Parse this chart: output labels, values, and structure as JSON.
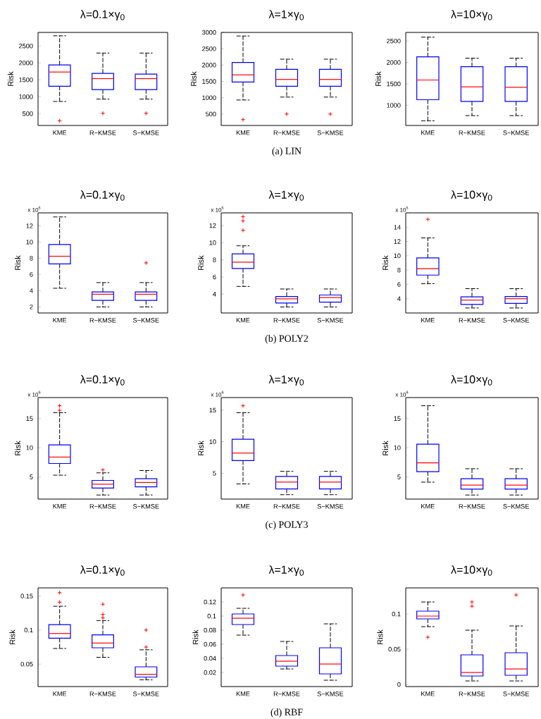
{
  "chart_data": [
    {
      "type": "box",
      "title": "λ=0.1×γ$_{0}$",
      "ylabel": "Risk",
      "categories": [
        "KME",
        "R−KMSE",
        "S−KMSE"
      ],
      "marker": "cross",
      "ylim": [
        150,
        2900
      ],
      "yticks": [
        500,
        1000,
        1500,
        2000,
        2500
      ],
      "series": [
        {
          "color": "#0000ff",
          "boxes": [
            {
              "low": 860,
              "q1": 1310,
              "median": 1730,
              "q3": 1940,
              "high": 2800,
              "outliers": [
                290
              ]
            },
            {
              "low": 930,
              "q1": 1210,
              "median": 1535,
              "q3": 1690,
              "high": 2290,
              "outliers": [
                510
              ]
            },
            {
              "low": 930,
              "q1": 1210,
              "median": 1535,
              "q3": 1670,
              "high": 2290,
              "outliers": [
                510
              ]
            }
          ]
        }
      ]
    },
    {
      "type": "box",
      "title": "λ=1×γ$_{0}$",
      "ylabel": "Risk",
      "categories": [
        "KME",
        "R−KMSE",
        "S−KMSE"
      ],
      "marker": "cross",
      "ylim": [
        150,
        3000
      ],
      "yticks": [
        500,
        1000,
        1500,
        2000,
        2500,
        3000
      ],
      "annotations": [
        "(a) LIN"
      ],
      "series": [
        {
          "color": "#0000ff",
          "boxes": [
            {
              "low": 930,
              "q1": 1480,
              "median": 1700,
              "q3": 2080,
              "high": 2890,
              "outliers": [
                330
              ]
            },
            {
              "low": 1020,
              "q1": 1350,
              "median": 1560,
              "q3": 1870,
              "high": 2180,
              "outliers": [
                500
              ]
            },
            {
              "low": 1020,
              "q1": 1350,
              "median": 1560,
              "q3": 1870,
              "high": 2180,
              "outliers": [
                500
              ]
            }
          ]
        }
      ]
    },
    {
      "type": "box",
      "title": "λ=10×γ$_{0}$",
      "ylabel": "Risk",
      "categories": [
        "KME",
        "R−KMSE",
        "S−KMSE"
      ],
      "marker": "cross",
      "ylim": [
        530,
        2700
      ],
      "yticks": [
        1000,
        1500,
        2000,
        2500
      ],
      "series": [
        {
          "color": "#0000ff",
          "boxes": [
            {
              "low": 640,
              "q1": 1130,
              "median": 1590,
              "q3": 2130,
              "high": 2590
            },
            {
              "low": 760,
              "q1": 1090,
              "median": 1430,
              "q3": 1900,
              "high": 2100
            },
            {
              "low": 760,
              "q1": 1090,
              "median": 1420,
              "q3": 1900,
              "high": 2100
            }
          ]
        }
      ]
    },
    {
      "type": "box",
      "title": "λ=0.1×γ$_{0}$",
      "ylabel": "Risk",
      "categories": [
        "KME",
        "R−KMSE",
        "S−KMSE"
      ],
      "marker": "cross",
      "ylim": [
        1.25,
        13.6
      ],
      "annotations": [
        "x 10$^{5}$"
      ],
      "yticks": [
        2,
        4,
        6,
        8,
        10,
        12
      ],
      "series": [
        {
          "color": "#0000ff",
          "boxes": [
            {
              "low": 4.3,
              "q1": 7.3,
              "median": 8.25,
              "q3": 9.7,
              "high": 13.1
            },
            {
              "low": 2.0,
              "q1": 2.8,
              "median": 3.56,
              "q3": 3.85,
              "high": 5.0
            },
            {
              "low": 2.0,
              "q1": 2.8,
              "median": 3.56,
              "q3": 3.85,
              "high": 5.0,
              "outliers": [
                7.43
              ]
            }
          ]
        }
      ]
    },
    {
      "type": "box",
      "title": "λ=1×γ$_{0}$",
      "ylabel": "Risk",
      "categories": [
        "KME",
        "R−KMSE",
        "S−KMSE"
      ],
      "marker": "cross",
      "ylim": [
        1.8,
        13.48
      ],
      "annotations": [
        "x 10$^{5}$",
        "(b) POLY2"
      ],
      "yticks": [
        4,
        6,
        8,
        10,
        12
      ],
      "series": [
        {
          "color": "#0000ff",
          "boxes": [
            {
              "low": 4.9,
              "q1": 7.0,
              "median": 7.73,
              "q3": 8.7,
              "high": 9.64,
              "outliers": [
                13.04,
                12.55,
                11.45
              ]
            },
            {
              "low": 2.5,
              "q1": 2.96,
              "median": 3.45,
              "q3": 3.73,
              "high": 4.6
            },
            {
              "low": 2.5,
              "q1": 3.07,
              "median": 3.6,
              "q3": 3.9,
              "high": 4.6
            }
          ]
        }
      ]
    },
    {
      "type": "box",
      "title": "λ=10×γ$_{0}$",
      "ylabel": "Risk",
      "categories": [
        "KME",
        "R−KMSE",
        "S−KMSE"
      ],
      "marker": "cross",
      "ylim": [
        2,
        16
      ],
      "annotations": [
        "x 10$^{5}$"
      ],
      "yticks": [
        4,
        6,
        8,
        10,
        12,
        14
      ],
      "series": [
        {
          "color": "#0000ff",
          "boxes": [
            {
              "low": 6.1,
              "q1": 7.3,
              "median": 8.2,
              "q3": 9.7,
              "high": 12.5,
              "outliers": [
                15.1
              ]
            },
            {
              "low": 2.7,
              "q1": 3.2,
              "median": 3.8,
              "q3": 4.25,
              "high": 5.4
            },
            {
              "low": 2.7,
              "q1": 3.35,
              "median": 4.0,
              "q3": 4.3,
              "high": 5.4
            }
          ]
        }
      ]
    },
    {
      "type": "box",
      "title": "λ=0.1×γ$_{0}$",
      "ylabel": "Risk",
      "categories": [
        "KME",
        "R−KMSE",
        "S−KMSE"
      ],
      "marker": "cross",
      "ylim": [
        1.2,
        18.6
      ],
      "annotations": [
        "x 10$^{6}$"
      ],
      "yticks": [
        5,
        10,
        15
      ],
      "series": [
        {
          "color": "#0000ff",
          "boxes": [
            {
              "low": 5.3,
              "q1": 7.3,
              "median": 8.4,
              "q3": 10.5,
              "high": 16.0,
              "outliers": [
                17.2,
                16.4
              ]
            },
            {
              "low": 1.9,
              "q1": 3.1,
              "median": 3.75,
              "q3": 4.4,
              "high": 5.7,
              "outliers": [
                6.2
              ]
            },
            {
              "low": 1.9,
              "q1": 3.3,
              "median": 4.05,
              "q3": 4.7,
              "high": 6.1
            }
          ]
        }
      ]
    },
    {
      "type": "box",
      "title": "λ=1×γ$_{0}$",
      "ylabel": "Risk",
      "categories": [
        "KME",
        "R−KMSE",
        "S−KMSE"
      ],
      "marker": "cross",
      "ylim": [
        0.9,
        17
      ],
      "annotations": [
        "x 10$^{6}$",
        "(c) POLY3"
      ],
      "yticks": [
        5,
        10,
        15
      ],
      "series": [
        {
          "color": "#0000ff",
          "boxes": [
            {
              "low": 3.3,
              "q1": 7.0,
              "median": 8.2,
              "q3": 10.4,
              "high": 14.6,
              "outliers": [
                15.7
              ]
            },
            {
              "low": 1.6,
              "q1": 2.5,
              "median": 3.6,
              "q3": 4.5,
              "high": 5.3
            },
            {
              "low": 1.6,
              "q1": 2.5,
              "median": 3.6,
              "q3": 4.5,
              "high": 5.3
            }
          ]
        }
      ]
    },
    {
      "type": "box",
      "title": "λ=10×γ$_{0}$",
      "ylabel": "Risk",
      "categories": [
        "KME",
        "R−KMSE",
        "S−KMSE"
      ],
      "marker": "cross",
      "ylim": [
        1.2,
        18.6
      ],
      "annotations": [
        "x 10$^{6}$"
      ],
      "yticks": [
        5,
        10,
        15
      ],
      "series": [
        {
          "color": "#0000ff",
          "boxes": [
            {
              "low": 4.1,
              "q1": 5.9,
              "median": 7.4,
              "q3": 10.6,
              "high": 17.2
            },
            {
              "low": 1.9,
              "q1": 2.9,
              "median": 3.6,
              "q3": 4.7,
              "high": 6.4
            },
            {
              "low": 1.9,
              "q1": 2.9,
              "median": 3.6,
              "q3": 4.7,
              "high": 6.4
            }
          ]
        }
      ]
    },
    {
      "type": "box",
      "title": "λ=0.1×γ$_{0}$",
      "ylabel": "Risk",
      "categories": [
        "KME",
        "R−KMSE",
        "S−KMSE"
      ],
      "marker": "cross",
      "ylim": [
        0.017,
        0.162
      ],
      "yticks": [
        0.05,
        0.1,
        0.15
      ],
      "series": [
        {
          "color": "#0000ff",
          "boxes": [
            {
              "low": 0.073,
              "q1": 0.088,
              "median": 0.095,
              "q3": 0.108,
              "high": 0.135,
              "outliers": [
                0.155,
                0.141
              ]
            },
            {
              "low": 0.06,
              "q1": 0.074,
              "median": 0.081,
              "q3": 0.093,
              "high": 0.114,
              "outliers": [
                0.138,
                0.123,
                0.118
              ]
            },
            {
              "low": 0.027,
              "q1": 0.031,
              "median": 0.035,
              "q3": 0.046,
              "high": 0.071,
              "outliers": [
                0.1,
                0.075
              ]
            }
          ]
        }
      ]
    },
    {
      "type": "box",
      "title": "λ=1×γ$_{0}$",
      "ylabel": "Risk",
      "categories": [
        "KME",
        "R−KMSE",
        "S−KMSE"
      ],
      "marker": "cross",
      "ylim": [
        0,
        0.14
      ],
      "yticks": [
        0.02,
        0.04,
        0.06,
        0.08,
        0.1,
        0.12
      ],
      "annotations": [
        "(d) RBF"
      ],
      "series": [
        {
          "color": "#0000ff",
          "boxes": [
            {
              "low": 0.073,
              "q1": 0.088,
              "median": 0.097,
              "q3": 0.103,
              "high": 0.111,
              "outliers": [
                0.13
              ]
            },
            {
              "low": 0.025,
              "q1": 0.029,
              "median": 0.036,
              "q3": 0.044,
              "high": 0.064
            },
            {
              "low": 0.009,
              "q1": 0.018,
              "median": 0.032,
              "q3": 0.055,
              "high": 0.089
            }
          ]
        }
      ]
    },
    {
      "type": "box",
      "title": "λ=10×γ$_{0}$",
      "ylabel": "Risk",
      "categories": [
        "KME",
        "R−KMSE",
        "S−KMSE"
      ],
      "marker": "cross",
      "ylim": [
        -0.003,
        0.137
      ],
      "yticks": [
        0,
        0.05,
        0.1
      ],
      "series": [
        {
          "color": "#0000ff",
          "boxes": [
            {
              "low": 0.082,
              "q1": 0.093,
              "median": 0.097,
              "q3": 0.104,
              "high": 0.117,
              "outliers": [
                0.067
              ]
            },
            {
              "low": 0.005,
              "q1": 0.012,
              "median": 0.017,
              "q3": 0.042,
              "high": 0.077,
              "outliers": [
                0.117,
                0.111
              ]
            },
            {
              "low": 0.005,
              "q1": 0.013,
              "median": 0.022,
              "q3": 0.045,
              "high": 0.083,
              "outliers": [
                0.127
              ]
            }
          ]
        }
      ]
    }
  ]
}
